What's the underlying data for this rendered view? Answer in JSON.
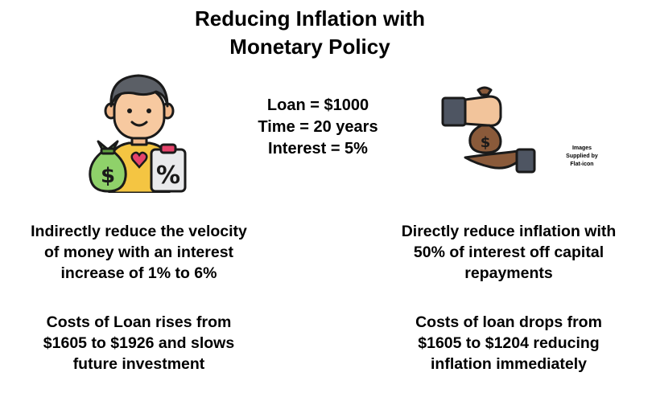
{
  "title": {
    "line1": "Reducing Inflation with",
    "line2": "Monetary Policy"
  },
  "center_info": {
    "loan": "Loan = $1000",
    "time": "Time = 20 years",
    "interest": "Interest = 5%"
  },
  "credit": {
    "line1": "Images",
    "line2": "Supplied by",
    "line3": "Flat-icon"
  },
  "left": {
    "point1": {
      "line1": "Indirectly reduce the velocity",
      "line2": "of money with an interest",
      "line3": "increase of 1% to 6%"
    },
    "point2": {
      "line1": "Costs of Loan rises from",
      "line2": "$1605 to $1926 and slows",
      "line3": "future investment"
    }
  },
  "right": {
    "point1": {
      "line1": "Directly reduce inflation with",
      "line2": "50% of interest off capital",
      "line3": "repayments"
    },
    "point2": {
      "line1": "Costs of loan drops from",
      "line2": "$1605 to $1204 reducing",
      "line3": "inflation immediately"
    }
  },
  "icons": {
    "left": "person-money-bag-percent-icon",
    "right": "hands-exchanging-money-bag-icon"
  }
}
